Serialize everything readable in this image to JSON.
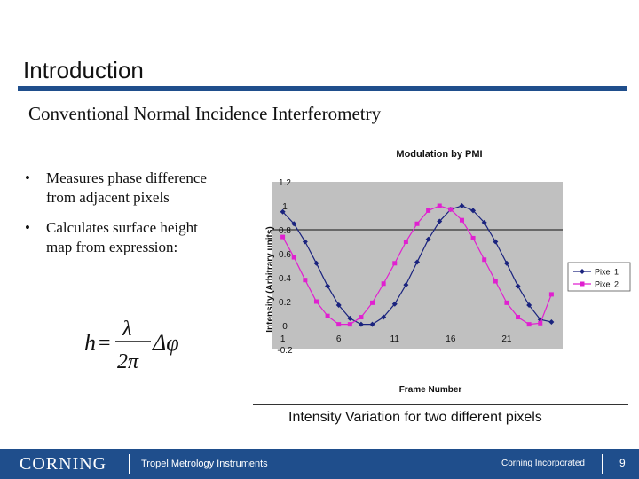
{
  "slide": {
    "title": "Introduction",
    "subtitle": "Conventional Normal Incidence Interferometry",
    "bullets": [
      {
        "line1": "Measures phase difference",
        "line2": "from adjacent pixels"
      },
      {
        "line1": "Calculates surface height",
        "line2": "map from expression:"
      }
    ],
    "bullet_glyph": "•",
    "formula": {
      "lhs": "h",
      "eq": "=",
      "num": "λ",
      "den": "2π",
      "rhs": "Δφ"
    },
    "caption": "Intensity Variation for two different pixels"
  },
  "footer": {
    "logo": "CORNING",
    "division": "Tropel Metrology Instruments",
    "company": "Corning Incorporated",
    "page": "9",
    "color": "#1f4e8c"
  },
  "chart_data": {
    "type": "line",
    "title": "Modulation by PMI",
    "xlabel": "Frame Number",
    "ylabel": "Intensity (Arbitrary units)",
    "ylim": [
      -0.2,
      1.2
    ],
    "yticks": [
      "1.2",
      "1",
      "0.8",
      "0.6",
      "0.4",
      "0.2",
      "0",
      "-0.2"
    ],
    "xtick_labels": [
      "1",
      "6",
      "11",
      "16",
      "21"
    ],
    "x": [
      1,
      2,
      3,
      4,
      5,
      6,
      7,
      8,
      9,
      10,
      11,
      12,
      13,
      14,
      15,
      16,
      17,
      18,
      19,
      20,
      21,
      22,
      23,
      24,
      25
    ],
    "reference_line": 0.8,
    "grid": false,
    "plot_background": "#c0c0c0",
    "legend_position": "right",
    "series": [
      {
        "name": "Pixel 1",
        "color": "#1a237e",
        "marker": "diamond",
        "values": [
          0.95,
          0.85,
          0.7,
          0.52,
          0.33,
          0.17,
          0.06,
          0.01,
          0.01,
          0.07,
          0.18,
          0.34,
          0.53,
          0.72,
          0.87,
          0.97,
          1.0,
          0.96,
          0.86,
          0.7,
          0.52,
          0.33,
          0.17,
          0.05,
          0.03
        ]
      },
      {
        "name": "Pixel 2",
        "color": "#e020d0",
        "marker": "square",
        "values": [
          0.74,
          0.57,
          0.38,
          0.2,
          0.08,
          0.01,
          0.01,
          0.07,
          0.19,
          0.35,
          0.52,
          0.7,
          0.85,
          0.96,
          1.0,
          0.97,
          0.88,
          0.73,
          0.55,
          0.37,
          0.19,
          0.07,
          0.01,
          0.02,
          0.26
        ]
      }
    ]
  }
}
